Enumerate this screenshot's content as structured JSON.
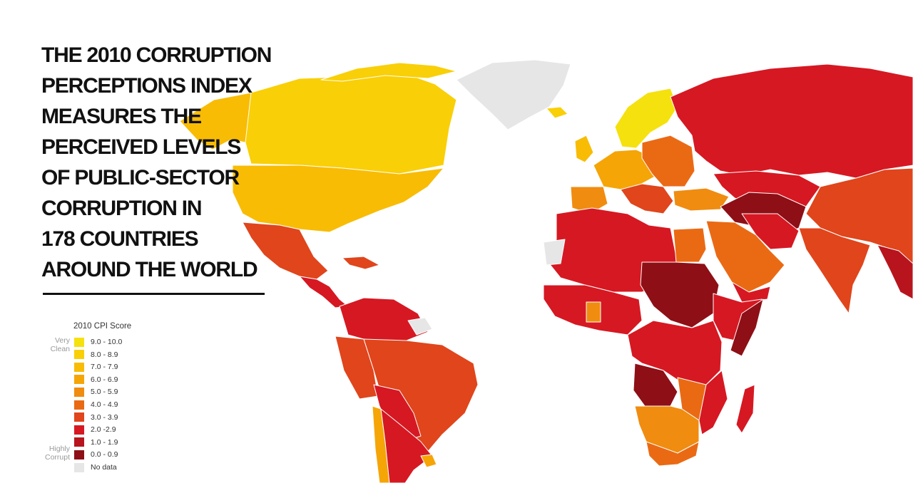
{
  "headline": {
    "lines": [
      "THE 2010 CORRUPTION",
      "PERCEPTIONS INDEX",
      "MEASURES THE",
      "PERCEIVED LEVELS",
      "OF PUBLIC-SECTOR",
      "CORRUPTION IN",
      "178 COUNTRIES",
      "AROUND THE WORLD"
    ]
  },
  "legend": {
    "title": "2010 CPI Score",
    "top_label": [
      "Very",
      "Clean"
    ],
    "bottom_label": [
      "Highly",
      "Corrupt"
    ],
    "items": [
      {
        "range": "9.0 - 10.0",
        "color": "#f5e10d"
      },
      {
        "range": "8.0 - 8.9",
        "color": "#f9cf07"
      },
      {
        "range": "7.0 - 7.9",
        "color": "#f8bc05"
      },
      {
        "range": "6.0 - 6.9",
        "color": "#f5a506"
      },
      {
        "range": "5.0 - 5.9",
        "color": "#f08c10"
      },
      {
        "range": "4.0 - 4.9",
        "color": "#ea6a14"
      },
      {
        "range": "3.0 - 3.9",
        "color": "#e0451c"
      },
      {
        "range": "2.0 -2.9",
        "color": "#d61822"
      },
      {
        "range": "1.0 - 1.9",
        "color": "#b8141d"
      },
      {
        "range": "0.0 - 0.9",
        "color": "#8e0f16"
      },
      {
        "range": "No data",
        "color": "#e6e6e6"
      }
    ]
  }
}
